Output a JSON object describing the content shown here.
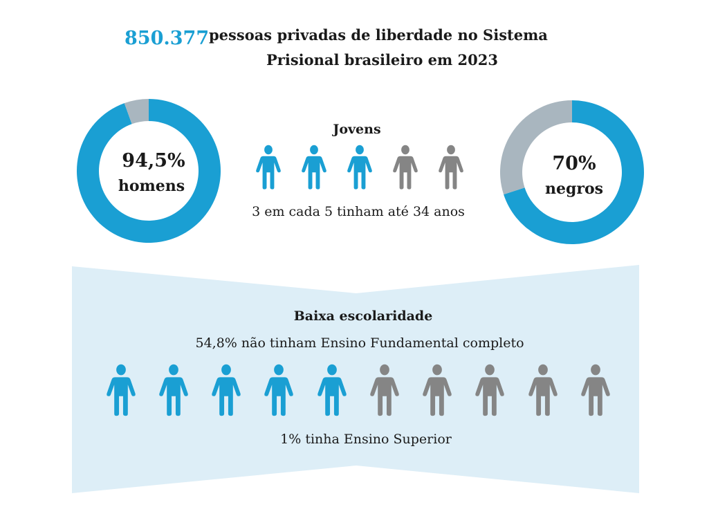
{
  "title": {
    "number": "850.377",
    "line1": "pessoas privadas de liberdade no Sistema",
    "line2": "Prisional brasileiro em 2023"
  },
  "colors": {
    "accent": "#1a9fd3",
    "donut_rest": "#a9b6bf",
    "figure_gray": "#858585",
    "panel": "#ddeef7"
  },
  "chart_data": [
    {
      "type": "pie",
      "subtype": "donut",
      "values": [
        94.5,
        5.5
      ],
      "label_value": "94,5%",
      "label_text": "homens"
    },
    {
      "type": "pie",
      "subtype": "donut",
      "values": [
        70,
        30
      ],
      "label_value": "70%",
      "label_text": "negros"
    },
    {
      "type": "pictogram",
      "title": "Jovens",
      "highlighted": 3,
      "total": 5,
      "caption": "3 em cada 5 tinham até 34 anos"
    },
    {
      "type": "pictogram",
      "title": "Baixa escolaridade",
      "highlighted": 5,
      "total": 10,
      "caption_top": "54,8% não tinham Ensino Fundamental completo",
      "caption_bottom": "1% tinha Ensino Superior"
    }
  ]
}
